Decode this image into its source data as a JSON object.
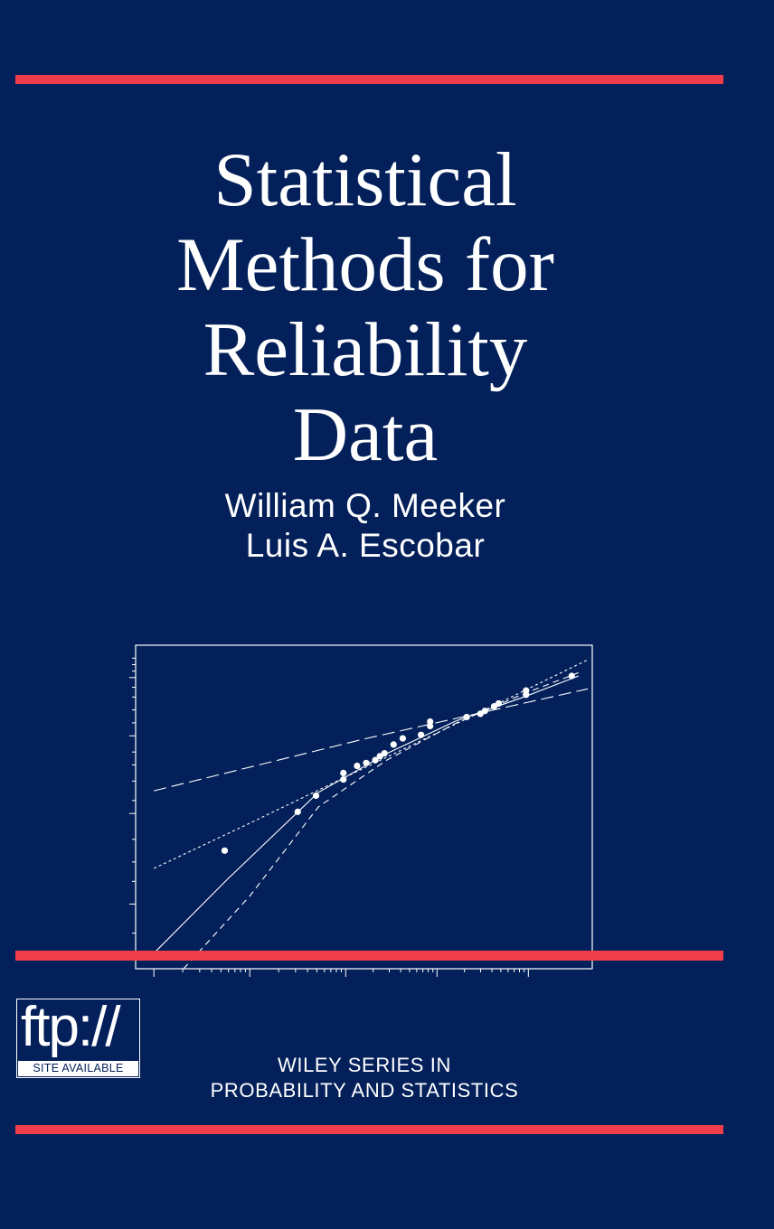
{
  "cover": {
    "background": "#03205a",
    "accent": "#ef3e4a",
    "text_color": "#ffffff",
    "title_lines": [
      "Statistical",
      "Methods for",
      "Reliability",
      "Data"
    ],
    "authors": [
      "William Q. Meeker",
      "Luis A. Escobar"
    ],
    "ftp_logo_text": "ftp://",
    "ftp_caption": "SITE AVAILABLE",
    "series_lines": [
      "WILEY SERIES IN",
      "PROBABILITY AND STATISTICS"
    ]
  },
  "chart_data": {
    "type": "scatter",
    "title": "",
    "xlabel": "",
    "ylabel": "",
    "x_scale": "log",
    "y_scale": "probability",
    "xlim": [
      0,
      1
    ],
    "ylim": [
      0,
      1
    ],
    "tick_labels_shown": false,
    "points": [
      {
        "x": 0.195,
        "y": 0.365
      },
      {
        "x": 0.355,
        "y": 0.485
      },
      {
        "x": 0.395,
        "y": 0.535
      },
      {
        "x": 0.455,
        "y": 0.585
      },
      {
        "x": 0.455,
        "y": 0.605
      },
      {
        "x": 0.485,
        "y": 0.627
      },
      {
        "x": 0.505,
        "y": 0.636
      },
      {
        "x": 0.525,
        "y": 0.645
      },
      {
        "x": 0.535,
        "y": 0.657
      },
      {
        "x": 0.545,
        "y": 0.666
      },
      {
        "x": 0.565,
        "y": 0.693
      },
      {
        "x": 0.585,
        "y": 0.712
      },
      {
        "x": 0.625,
        "y": 0.723
      },
      {
        "x": 0.645,
        "y": 0.75
      },
      {
        "x": 0.645,
        "y": 0.764
      },
      {
        "x": 0.725,
        "y": 0.778
      },
      {
        "x": 0.755,
        "y": 0.788
      },
      {
        "x": 0.765,
        "y": 0.797
      },
      {
        "x": 0.785,
        "y": 0.811
      },
      {
        "x": 0.795,
        "y": 0.82
      },
      {
        "x": 0.855,
        "y": 0.847
      },
      {
        "x": 0.855,
        "y": 0.86
      },
      {
        "x": 0.955,
        "y": 0.905
      }
    ],
    "fits": [
      {
        "style": "solid",
        "x": [
          0.045,
          0.2,
          0.4,
          0.55,
          0.7,
          0.85,
          0.97
        ],
        "y": [
          0.055,
          0.275,
          0.545,
          0.665,
          0.765,
          0.84,
          0.905
        ]
      },
      {
        "style": "dashed",
        "x": [
          0.105,
          0.25,
          0.4,
          0.55,
          0.7,
          0.85,
          0.97
        ],
        "y": [
          0.0,
          0.225,
          0.5,
          0.645,
          0.758,
          0.85,
          0.915
        ]
      },
      {
        "style": "dotted",
        "x": [
          0.04,
          0.25,
          0.5,
          0.75,
          0.99
        ],
        "y": [
          0.31,
          0.45,
          0.62,
          0.79,
          0.955
        ]
      },
      {
        "style": "long-dash",
        "x": [
          0.04,
          0.5,
          0.99
        ],
        "y": [
          0.55,
          0.71,
          0.865
        ]
      }
    ]
  }
}
